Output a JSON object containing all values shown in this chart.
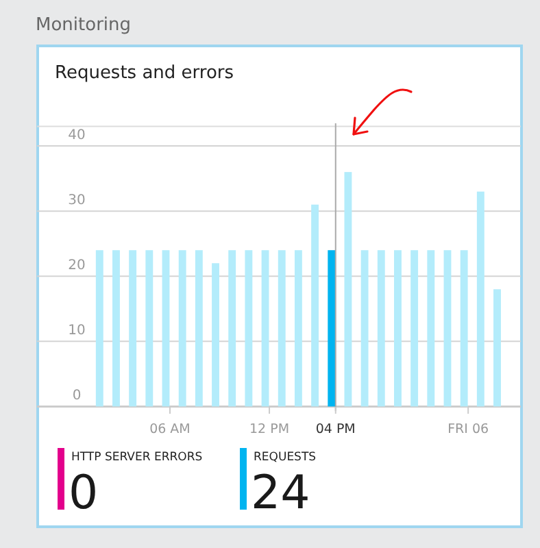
{
  "chart_data": {
    "type": "bar",
    "title": "Requests and errors",
    "categories": [
      null,
      null,
      null,
      null,
      "06 AM",
      null,
      null,
      null,
      null,
      null,
      "12 PM",
      null,
      null,
      null,
      "04 PM",
      null,
      null,
      null,
      null,
      null,
      null,
      null,
      "FRI 06",
      null,
      null
    ],
    "series": [
      {
        "name": "HTTP SERVER ERRORS",
        "color": "#e3008c",
        "values": [
          0,
          0,
          0,
          0,
          0,
          0,
          0,
          0,
          0,
          0,
          0,
          0,
          0,
          0,
          0,
          0,
          0,
          0,
          0,
          0,
          0,
          0,
          0,
          0,
          0
        ]
      },
      {
        "name": "REQUESTS",
        "color": "#00b4f0",
        "colors": [
          "#b3ecfb",
          "#b3ecfb",
          "#b3ecfb",
          "#b3ecfb",
          "#b3ecfb",
          "#b3ecfb",
          "#b3ecfb",
          "#b3ecfb",
          "#b3ecfb",
          "#b3ecfb",
          "#b3ecfb",
          "#b3ecfb",
          "#b3ecfb",
          "#b3ecfb",
          "#00b4f0",
          "#b3ecfb",
          "#b3ecfb",
          "#b3ecfb",
          "#b3ecfb",
          "#b3ecfb",
          "#b3ecfb",
          "#b3ecfb",
          "#b3ecfb",
          "#b3ecfb",
          "#b3ecfb"
        ],
        "values": [
          24,
          24,
          24,
          24,
          24,
          24,
          24,
          22,
          24,
          24,
          24,
          24,
          24,
          31,
          24,
          36,
          24,
          24,
          24,
          24,
          24,
          24,
          24,
          33,
          18
        ]
      }
    ],
    "ylim": [
      0,
      43
    ],
    "yticks": [
      0,
      10,
      20,
      30,
      40
    ],
    "grid": "y",
    "legend": "bottom",
    "ref_lines": [
      {
        "axis": "x",
        "value": "04 PM",
        "color": "#aaaaaa"
      }
    ],
    "annotations": [
      "Monitoring",
      "0",
      "24"
    ]
  }
}
